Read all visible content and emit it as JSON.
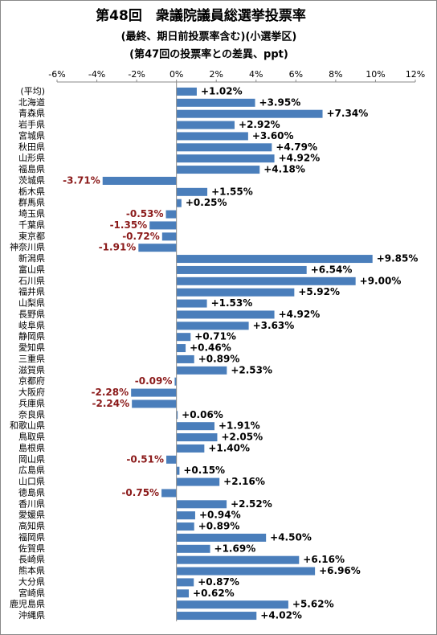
{
  "chart_data": {
    "type": "barh",
    "title": "第48回　衆議院議員総選挙投票率",
    "subtitle": [
      "(最終、期日前投票率含む)(小選挙区)",
      "(第47回の投票率との差異、ppt)"
    ],
    "categories": [
      "(平均)",
      "北海道",
      "青森県",
      "岩手県",
      "宮城県",
      "秋田県",
      "山形県",
      "福島県",
      "茨城県",
      "栃木県",
      "群馬県",
      "埼玉県",
      "千葉県",
      "東京都",
      "神奈川県",
      "新潟県",
      "富山県",
      "石川県",
      "福井県",
      "山梨県",
      "長野県",
      "岐阜県",
      "静岡県",
      "愛知県",
      "三重県",
      "滋賀県",
      "京都府",
      "大阪府",
      "兵庫県",
      "奈良県",
      "和歌山県",
      "鳥取県",
      "島根県",
      "岡山県",
      "広島県",
      "山口県",
      "徳島県",
      "香川県",
      "愛媛県",
      "高知県",
      "福岡県",
      "佐賀県",
      "長崎県",
      "熊本県",
      "大分県",
      "宮崎県",
      "鹿児島県",
      "沖縄県"
    ],
    "values": [
      1.02,
      3.95,
      7.34,
      2.92,
      3.6,
      4.79,
      4.92,
      4.18,
      -3.71,
      1.55,
      0.25,
      -0.53,
      -1.35,
      -0.72,
      -1.91,
      9.85,
      6.54,
      9.0,
      5.92,
      1.53,
      4.92,
      3.63,
      0.71,
      0.46,
      0.89,
      2.53,
      -0.09,
      -2.28,
      -2.24,
      0.06,
      1.91,
      2.05,
      1.4,
      -0.51,
      0.15,
      2.16,
      -0.75,
      2.52,
      0.94,
      0.89,
      4.5,
      1.69,
      6.16,
      6.96,
      0.87,
      0.62,
      5.62,
      4.02
    ],
    "value_labels": [
      "+1.02%",
      "+3.95%",
      "+7.34%",
      "+2.92%",
      "+3.60%",
      "+4.79%",
      "+4.92%",
      "+4.18%",
      "-3.71%",
      "+1.55%",
      "+0.25%",
      "-0.53%",
      "-1.35%",
      "-0.72%",
      "-1.91%",
      "+9.85%",
      "+6.54%",
      "+9.00%",
      "+5.92%",
      "+1.53%",
      "+4.92%",
      "+3.63%",
      "+0.71%",
      "+0.46%",
      "+0.89%",
      "+2.53%",
      "-0.09%",
      "-2.28%",
      "-2.24%",
      "+0.06%",
      "+1.91%",
      "+2.05%",
      "+1.40%",
      "-0.51%",
      "+0.15%",
      "+2.16%",
      "-0.75%",
      "+2.52%",
      "+0.94%",
      "+0.89%",
      "+4.50%",
      "+1.69%",
      "+6.16%",
      "+6.96%",
      "+0.87%",
      "+0.62%",
      "+5.62%",
      "+4.02%"
    ],
    "color": "#4a7ebb",
    "negative_label_color": "#8b1a1a",
    "xlim": [
      -6,
      12
    ],
    "xticks": [
      {
        "value": -6,
        "label": "-6%"
      },
      {
        "value": -4,
        "label": "-4%"
      },
      {
        "value": -2,
        "label": "-2%"
      },
      {
        "value": 0,
        "label": "0%"
      },
      {
        "value": 2,
        "label": "2%"
      },
      {
        "value": 4,
        "label": "4%"
      },
      {
        "value": 6,
        "label": "6%"
      },
      {
        "value": 8,
        "label": "8%"
      },
      {
        "value": 10,
        "label": "10%"
      },
      {
        "value": 12,
        "label": "12%"
      }
    ],
    "grid": false
  }
}
